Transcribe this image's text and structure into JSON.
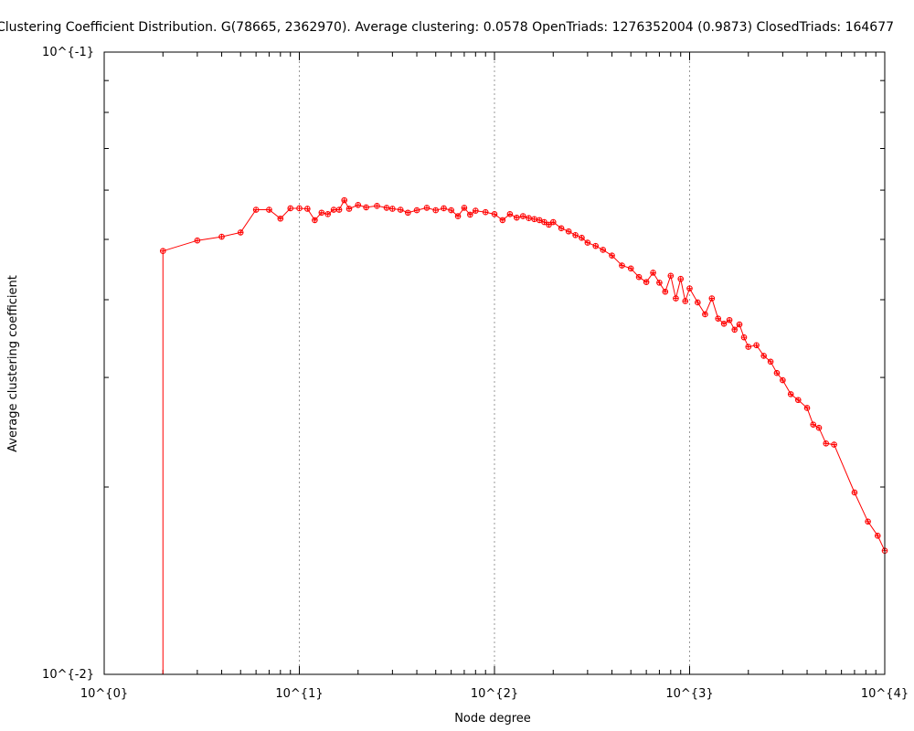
{
  "chart_data": {
    "type": "line",
    "title": "Clustering Coefficient Distribution. G(78665, 2362970). Average clustering: 0.0578  OpenTriads: 1276352004 (0.9873)  ClosedTriads: 164677",
    "xlabel": "Node degree",
    "ylabel": "Average clustering coefficient",
    "x_scale": "log",
    "y_scale": "log",
    "xlim": [
      1,
      10000
    ],
    "ylim": [
      0.01,
      0.1
    ],
    "x_tick_labels": [
      "10^{0}",
      "10^{1}",
      "10^{2}",
      "10^{3}",
      "10^{4}"
    ],
    "y_tick_labels": [
      "10^{-2}",
      "10^{-1}"
    ],
    "grid": "vertical dotted at decades",
    "series": [
      {
        "color": "#ff0000",
        "marker": "circle-plus",
        "x": [
          2,
          3,
          4,
          5,
          6,
          7,
          8,
          9,
          10,
          11,
          12,
          13,
          14,
          15,
          16,
          17,
          18,
          20,
          22,
          25,
          28,
          30,
          33,
          36,
          40,
          45,
          50,
          55,
          60,
          65,
          70,
          75,
          80,
          90,
          100,
          110,
          120,
          130,
          140,
          150,
          160,
          170,
          180,
          190,
          200,
          220,
          240,
          260,
          280,
          300,
          330,
          360,
          400,
          450,
          500,
          550,
          600,
          650,
          700,
          750,
          800,
          850,
          900,
          950,
          1000,
          1100,
          1200,
          1300,
          1400,
          1500,
          1600,
          1700,
          1800,
          1900,
          2000,
          2200,
          2400,
          2600,
          2800,
          3000,
          3300,
          3600,
          4000,
          4300,
          4600,
          5000,
          5500,
          7000,
          8200,
          9200,
          10000
        ],
        "y": [
          0.0479,
          0.0498,
          0.0505,
          0.0513,
          0.0558,
          0.0558,
          0.054,
          0.0561,
          0.0561,
          0.056,
          0.0537,
          0.0552,
          0.0549,
          0.0558,
          0.0558,
          0.0578,
          0.056,
          0.0568,
          0.0563,
          0.0566,
          0.0562,
          0.056,
          0.0558,
          0.0552,
          0.0557,
          0.0562,
          0.0557,
          0.0561,
          0.0557,
          0.0545,
          0.0562,
          0.0548,
          0.0556,
          0.0553,
          0.0549,
          0.0537,
          0.0549,
          0.0542,
          0.0545,
          0.0541,
          0.0539,
          0.0537,
          0.0533,
          0.0528,
          0.0533,
          0.0521,
          0.0515,
          0.0508,
          0.0503,
          0.0494,
          0.0488,
          0.0481,
          0.0471,
          0.0454,
          0.0449,
          0.0435,
          0.0427,
          0.0442,
          0.0426,
          0.0412,
          0.0437,
          0.0402,
          0.0432,
          0.0398,
          0.0417,
          0.0396,
          0.0379,
          0.0402,
          0.0373,
          0.0366,
          0.0371,
          0.0358,
          0.0365,
          0.0348,
          0.0336,
          0.0338,
          0.0325,
          0.0318,
          0.0305,
          0.0297,
          0.0282,
          0.0276,
          0.0268,
          0.0252,
          0.0249,
          0.0235,
          0.0234,
          0.0196,
          0.0176,
          0.0167,
          0.0158
        ]
      }
    ]
  }
}
